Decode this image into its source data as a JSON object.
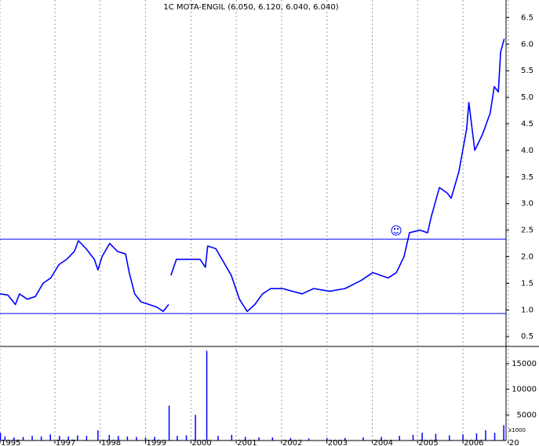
{
  "chart_data": {
    "type": "line",
    "title": "1C MOTA-ENGIL (6.050, 6.120, 6.040, 6.040)",
    "x": [
      1995.79,
      1995.96,
      1996.13,
      1996.22,
      1996.39,
      1996.57,
      1996.74,
      1996.91,
      1997.09,
      1997.26,
      1997.43,
      1997.52,
      1997.69,
      1997.87,
      1997.95,
      1998.04,
      1998.21,
      1998.38,
      1998.56,
      1998.64,
      1998.76,
      1998.9,
      1999.08,
      1999.25,
      1999.39,
      1999.51,
      1999.53,
      1999.56,
      1999.68,
      1999.94,
      2000.2,
      2000.32,
      2000.37,
      2000.55,
      2000.72,
      2000.89,
      2001.07,
      2001.24,
      2001.41,
      2001.58,
      2001.76,
      2002.02,
      2002.45,
      2002.71,
      2003.06,
      2003.4,
      2003.75,
      2004.01,
      2004.35,
      2004.53,
      2004.7,
      2004.82,
      2005.05,
      2005.22,
      2005.3,
      2005.48,
      2005.65,
      2005.74,
      2005.91,
      2006.08,
      2006.13,
      2006.26,
      2006.43,
      2006.6,
      2006.69,
      2006.78,
      2006.83,
      2006.91
    ],
    "series": [
      {
        "color": "#0000ff",
        "values": [
          1.3,
          1.28,
          1.1,
          1.3,
          1.2,
          1.25,
          1.5,
          1.6,
          1.85,
          1.95,
          2.1,
          2.3,
          2.15,
          1.95,
          1.75,
          2.0,
          2.25,
          2.1,
          2.05,
          1.7,
          1.3,
          1.15,
          1.1,
          1.05,
          0.97,
          1.1,
          null,
          1.65,
          1.95,
          1.95,
          1.95,
          1.8,
          2.2,
          2.15,
          1.9,
          1.65,
          1.2,
          0.97,
          1.1,
          1.3,
          1.4,
          1.4,
          1.3,
          1.4,
          1.35,
          1.4,
          1.55,
          1.7,
          1.6,
          1.7,
          2.0,
          2.45,
          2.5,
          2.45,
          2.75,
          3.3,
          3.2,
          3.1,
          3.6,
          4.4,
          4.9,
          4.0,
          4.3,
          4.7,
          5.2,
          5.1,
          5.85,
          6.1
        ]
      }
    ],
    "reference_lines": {
      "color": "#0000ff",
      "values": [
        2.33,
        0.93
      ]
    },
    "xlim": [
      1995.79,
      2006.95
    ],
    "xticks": [
      {
        "value": 1995.79,
        "label": "1995"
      },
      1997,
      1998,
      1999,
      2000,
      2001,
      2002,
      2003,
      2004,
      2005,
      2006,
      {
        "value": 2007,
        "label": "20"
      }
    ],
    "ylim": [
      0.34,
      6.83
    ],
    "yticks": [
      0.5,
      {
        "value": 1,
        "label": "1.0"
      },
      1.5,
      {
        "value": 2,
        "label": "2.0"
      },
      2.5,
      {
        "value": 3,
        "label": "3.0"
      },
      3.5,
      {
        "value": 4,
        "label": "4.0"
      },
      4.5,
      {
        "value": 5,
        "label": "5.0"
      },
      5.5,
      {
        "value": 6,
        "label": "6.0"
      },
      6.5
    ],
    "volume": {
      "color": "#0000ff",
      "unit_label": "x1000",
      "x": [
        1995.8,
        1995.9,
        1996.1,
        1996.3,
        1996.5,
        1996.7,
        1996.9,
        1997.1,
        1997.3,
        1997.5,
        1997.7,
        1997.95,
        1998.2,
        1998.4,
        1998.6,
        1998.8,
        1999.0,
        1999.2,
        1999.52,
        1999.7,
        1999.9,
        2000.1,
        2000.35,
        2000.6,
        2000.9,
        2001.2,
        2001.5,
        2001.8,
        2002.2,
        2002.6,
        2003.0,
        2003.4,
        2003.8,
        2004.2,
        2004.6,
        2004.9,
        2005.1,
        2005.4,
        2005.7,
        2006.0,
        2006.3,
        2006.5,
        2006.7,
        2006.9
      ],
      "values": [
        1500,
        800,
        600,
        700,
        900,
        800,
        1200,
        900,
        800,
        1000,
        900,
        2000,
        1100,
        900,
        800,
        700,
        600,
        700,
        6800,
        900,
        1000,
        5000,
        17500,
        900,
        1100,
        700,
        600,
        600,
        500,
        400,
        500,
        500,
        600,
        700,
        900,
        1100,
        1500,
        1300,
        1000,
        1200,
        1400,
        2000,
        1500,
        3000
      ],
      "ylim": [
        0,
        18200
      ],
      "yticks": [
        5000,
        10000,
        15000
      ]
    }
  }
}
